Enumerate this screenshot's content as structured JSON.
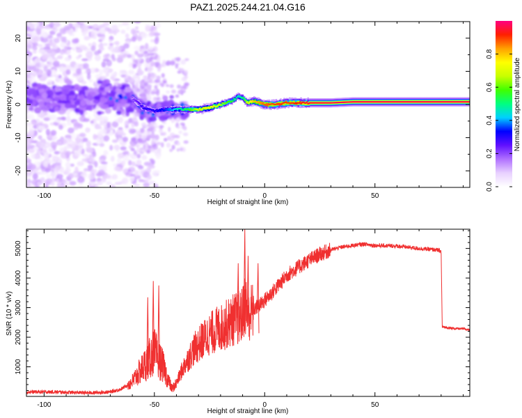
{
  "chart_data": [
    {
      "type": "heatmap",
      "title": "PAZ1.2025.244.21.04.G16",
      "xlabel": "Height of straight line (km)",
      "ylabel": "Frequency (Hz)",
      "xlim": [
        -108,
        93
      ],
      "ylim": [
        -25,
        25
      ],
      "x_ticks": [
        -100,
        -50,
        0,
        50
      ],
      "y_ticks": [
        -20,
        -10,
        0,
        10,
        20
      ],
      "colorbar": {
        "label": "Normalized spectral amplitude",
        "range": [
          0,
          1
        ],
        "ticks": [
          0.0,
          0.2,
          0.4,
          0.6,
          0.8
        ],
        "colors": [
          "#ffffff",
          "#e8d0ff",
          "#b070ff",
          "#6010ff",
          "#0000ff",
          "#00d0ff",
          "#00ff80",
          "#40ff00",
          "#c8ff00",
          "#ffff00",
          "#ffa000",
          "#ff2000",
          "#ff0080"
        ]
      },
      "ridge": {
        "x": [
          -60,
          -55,
          -50,
          -45,
          -40,
          -35,
          -30,
          -25,
          -20,
          -15,
          -12,
          -10,
          -8,
          -5,
          0,
          5,
          10,
          15,
          20,
          30,
          40,
          50,
          60,
          70,
          80,
          93
        ],
        "freq": [
          2,
          -1,
          -2,
          -1.5,
          -1.5,
          -1.5,
          -1.5,
          -1,
          0,
          1,
          2.5,
          2,
          0.5,
          1,
          0,
          0,
          0.5,
          0.5,
          0.5,
          0.5,
          0.8,
          0.8,
          0.8,
          0.8,
          0.8,
          0.8
        ],
        "amplitude": [
          0.2,
          0.3,
          0.3,
          0.35,
          0.45,
          0.55,
          0.7,
          0.75,
          0.65,
          0.55,
          0.45,
          0.5,
          0.7,
          0.8,
          0.88,
          0.9,
          0.9,
          0.92,
          0.95,
          0.97,
          0.97,
          0.97,
          0.97,
          0.97,
          0.97,
          0.97
        ]
      }
    },
    {
      "type": "line",
      "xlabel": "Height of straight line (km)",
      "ylabel": "SNR (10 * v/v)",
      "xlim": [
        -108,
        93
      ],
      "ylim": [
        0,
        5650
      ],
      "x_ticks": [
        -100,
        -50,
        0,
        50
      ],
      "y_ticks": [
        1000,
        2000,
        3000,
        4000,
        5000
      ],
      "color": "#f03030",
      "series": [
        {
          "name": "SNR",
          "x": [
            -108,
            -95,
            -80,
            -70,
            -65,
            -60,
            -57,
            -55,
            -52,
            -50,
            -48,
            -46,
            -44,
            -42,
            -40,
            -38,
            -36,
            -34,
            -32,
            -30,
            -28,
            -26,
            -24,
            -22,
            -20,
            -18,
            -16,
            -14,
            -12,
            -10,
            -9,
            -8,
            -7,
            -6,
            -4,
            -2,
            0,
            2,
            5,
            8,
            10,
            15,
            20,
            25,
            30,
            35,
            40,
            45,
            50,
            60,
            70,
            78,
            80,
            80.5,
            85,
            90,
            93
          ],
          "y": [
            150,
            150,
            120,
            150,
            250,
            500,
            800,
            1000,
            1300,
            1500,
            1250,
            1000,
            600,
            250,
            450,
            800,
            1100,
            1350,
            1600,
            1750,
            1900,
            2050,
            2150,
            2250,
            2300,
            2400,
            2500,
            2600,
            2650,
            2750,
            3200,
            2900,
            2850,
            2850,
            3000,
            3100,
            3250,
            3400,
            3650,
            3900,
            4100,
            4350,
            4600,
            4800,
            4950,
            5050,
            5100,
            5150,
            5100,
            5080,
            5000,
            4950,
            4900,
            2350,
            2300,
            2280,
            2250
          ],
          "spikes": [
            {
              "x": -50.5,
              "y": 3900
            },
            {
              "x": -48,
              "y": 3750
            },
            {
              "x": -53,
              "y": 3350
            },
            {
              "x": -9,
              "y": 5650
            },
            {
              "x": -7.5,
              "y": 4750
            },
            {
              "x": -12,
              "y": 4500
            },
            {
              "x": -3,
              "y": 4500
            }
          ]
        }
      ]
    }
  ]
}
